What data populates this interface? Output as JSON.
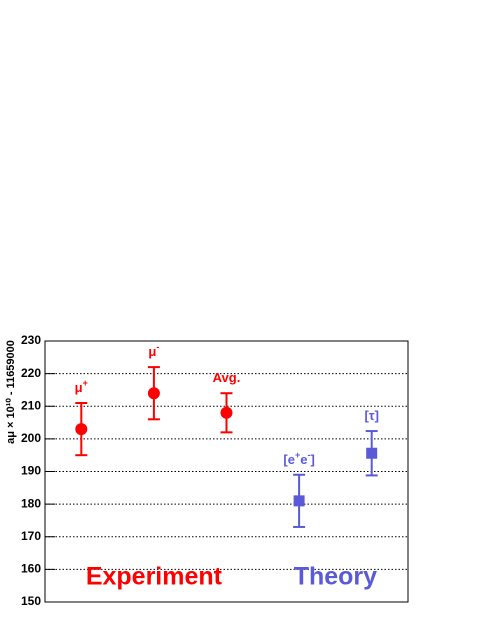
{
  "chart_data": {
    "type": "errorbar",
    "ylabel": "aμ × 10¹⁰ - 11659000",
    "categories": [
      "μ+",
      "μ-",
      "Avg.",
      "[e+e-]",
      "[τ]"
    ],
    "series": [
      {
        "name": "Experiment",
        "color": "#ff0000",
        "marker": "circle",
        "values": [
          203,
          214,
          208,
          null,
          null
        ],
        "errors": [
          8,
          8,
          6,
          null,
          null
        ]
      },
      {
        "name": "Theory",
        "color": "#5a5ad8",
        "marker": "square",
        "values": [
          null,
          null,
          null,
          181,
          195.6
        ],
        "errors": [
          null,
          null,
          null,
          8,
          6.8
        ]
      }
    ],
    "ylim": [
      150,
      230
    ],
    "yticks": [
      150,
      160,
      170,
      180,
      190,
      200,
      210,
      220,
      230
    ],
    "grid": true
  }
}
